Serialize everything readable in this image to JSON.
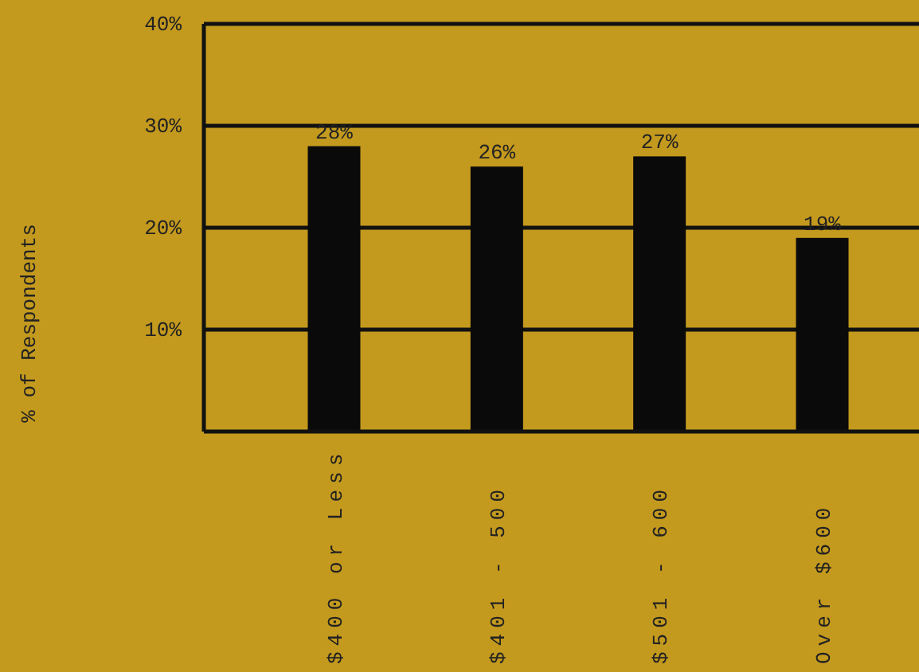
{
  "chart_data": {
    "type": "bar",
    "ylabel": "% of Respondents",
    "categories": [
      "$400 or Less",
      "$401 - 500",
      "$501 - 600",
      "Over $600"
    ],
    "values": [
      28,
      26,
      27,
      19
    ],
    "color": "#0a0a0a",
    "value_labels": [
      "28%",
      "26%",
      "27%",
      "19%"
    ],
    "ylim": [
      0,
      40
    ],
    "yticks": [
      {
        "value": 10,
        "label": "10%"
      },
      {
        "value": 20,
        "label": "20%"
      },
      {
        "value": 30,
        "label": "30%"
      },
      {
        "value": 40,
        "label": "40%"
      }
    ],
    "grid": "y"
  }
}
